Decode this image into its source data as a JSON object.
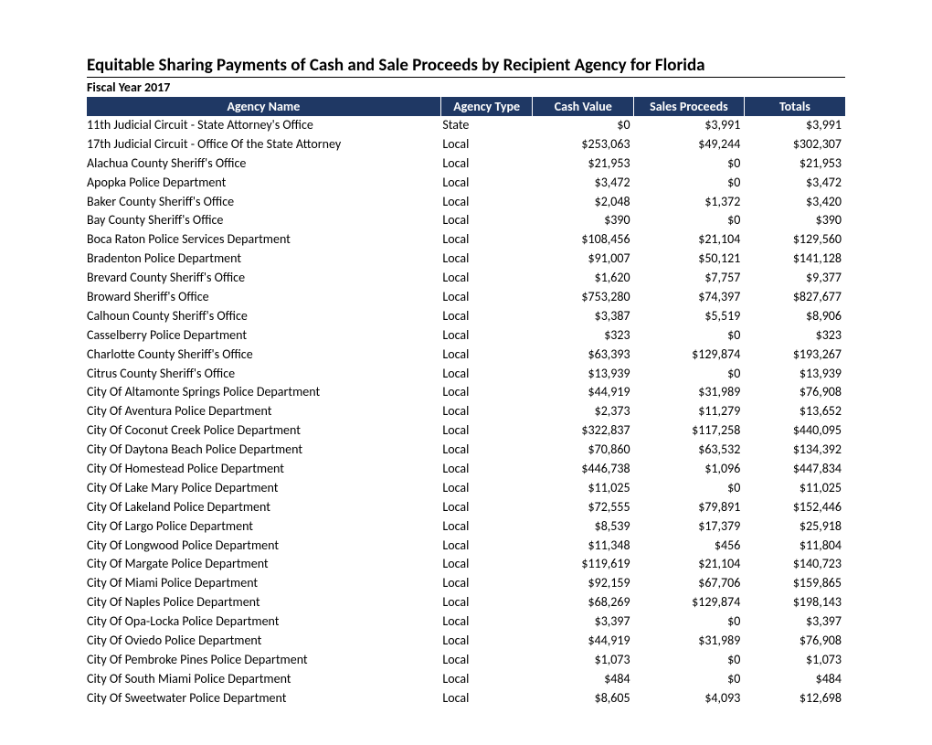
{
  "report": {
    "title": "Equitable Sharing Payments of Cash and Sale Proceeds by Recipient Agency for Florida",
    "subtitle": "Fiscal Year 2017",
    "columns": [
      "Agency Name",
      "Agency Type",
      "Cash Value",
      "Sales Proceeds",
      "Totals"
    ],
    "header_bg": "#1f3864",
    "header_fg": "#ffffff",
    "body_font_size": 14,
    "title_font_size": 19,
    "rows": [
      {
        "name": "11th Judicial Circuit - State Attorney's Office",
        "type": "State",
        "cash": "$0",
        "sales": "$3,991",
        "total": "$3,991"
      },
      {
        "name": "17th Judicial Circuit - Office Of the State Attorney",
        "type": "Local",
        "cash": "$253,063",
        "sales": "$49,244",
        "total": "$302,307"
      },
      {
        "name": "Alachua County Sheriff's Office",
        "type": "Local",
        "cash": "$21,953",
        "sales": "$0",
        "total": "$21,953"
      },
      {
        "name": "Apopka Police Department",
        "type": "Local",
        "cash": "$3,472",
        "sales": "$0",
        "total": "$3,472"
      },
      {
        "name": "Baker County Sheriff's Office",
        "type": "Local",
        "cash": "$2,048",
        "sales": "$1,372",
        "total": "$3,420"
      },
      {
        "name": "Bay County Sheriff's Office",
        "type": "Local",
        "cash": "$390",
        "sales": "$0",
        "total": "$390"
      },
      {
        "name": "Boca Raton Police Services Department",
        "type": "Local",
        "cash": "$108,456",
        "sales": "$21,104",
        "total": "$129,560"
      },
      {
        "name": "Bradenton Police Department",
        "type": "Local",
        "cash": "$91,007",
        "sales": "$50,121",
        "total": "$141,128"
      },
      {
        "name": "Brevard County Sheriff's Office",
        "type": "Local",
        "cash": "$1,620",
        "sales": "$7,757",
        "total": "$9,377"
      },
      {
        "name": "Broward Sheriff's Office",
        "type": "Local",
        "cash": "$753,280",
        "sales": "$74,397",
        "total": "$827,677"
      },
      {
        "name": "Calhoun County Sheriff's Office",
        "type": "Local",
        "cash": "$3,387",
        "sales": "$5,519",
        "total": "$8,906"
      },
      {
        "name": "Casselberry Police Department",
        "type": "Local",
        "cash": "$323",
        "sales": "$0",
        "total": "$323"
      },
      {
        "name": "Charlotte County Sheriff's Office",
        "type": "Local",
        "cash": "$63,393",
        "sales": "$129,874",
        "total": "$193,267"
      },
      {
        "name": "Citrus County Sheriff's Office",
        "type": "Local",
        "cash": "$13,939",
        "sales": "$0",
        "total": "$13,939"
      },
      {
        "name": "City Of Altamonte Springs Police Department",
        "type": "Local",
        "cash": "$44,919",
        "sales": "$31,989",
        "total": "$76,908"
      },
      {
        "name": "City Of Aventura Police Department",
        "type": "Local",
        "cash": "$2,373",
        "sales": "$11,279",
        "total": "$13,652"
      },
      {
        "name": "City Of Coconut Creek Police Department",
        "type": "Local",
        "cash": "$322,837",
        "sales": "$117,258",
        "total": "$440,095"
      },
      {
        "name": "City Of Daytona Beach Police Department",
        "type": "Local",
        "cash": "$70,860",
        "sales": "$63,532",
        "total": "$134,392"
      },
      {
        "name": "City Of Homestead Police Department",
        "type": "Local",
        "cash": "$446,738",
        "sales": "$1,096",
        "total": "$447,834"
      },
      {
        "name": "City Of Lake Mary Police Department",
        "type": "Local",
        "cash": "$11,025",
        "sales": "$0",
        "total": "$11,025"
      },
      {
        "name": "City Of Lakeland Police Department",
        "type": "Local",
        "cash": "$72,555",
        "sales": "$79,891",
        "total": "$152,446"
      },
      {
        "name": "City Of Largo Police Department",
        "type": "Local",
        "cash": "$8,539",
        "sales": "$17,379",
        "total": "$25,918"
      },
      {
        "name": "City Of Longwood Police Department",
        "type": "Local",
        "cash": "$11,348",
        "sales": "$456",
        "total": "$11,804"
      },
      {
        "name": "City Of Margate Police Department",
        "type": "Local",
        "cash": "$119,619",
        "sales": "$21,104",
        "total": "$140,723"
      },
      {
        "name": "City Of Miami Police Department",
        "type": "Local",
        "cash": "$92,159",
        "sales": "$67,706",
        "total": "$159,865"
      },
      {
        "name": "City Of Naples Police Department",
        "type": "Local",
        "cash": "$68,269",
        "sales": "$129,874",
        "total": "$198,143"
      },
      {
        "name": "City Of Opa-Locka Police Department",
        "type": "Local",
        "cash": "$3,397",
        "sales": "$0",
        "total": "$3,397"
      },
      {
        "name": "City Of Oviedo Police Department",
        "type": "Local",
        "cash": "$44,919",
        "sales": "$31,989",
        "total": "$76,908"
      },
      {
        "name": "City Of Pembroke Pines Police Department",
        "type": "Local",
        "cash": "$1,073",
        "sales": "$0",
        "total": "$1,073"
      },
      {
        "name": "City Of South Miami Police Department",
        "type": "Local",
        "cash": "$484",
        "sales": "$0",
        "total": "$484"
      },
      {
        "name": "City Of Sweetwater Police Department",
        "type": "Local",
        "cash": "$8,605",
        "sales": "$4,093",
        "total": "$12,698"
      }
    ]
  }
}
